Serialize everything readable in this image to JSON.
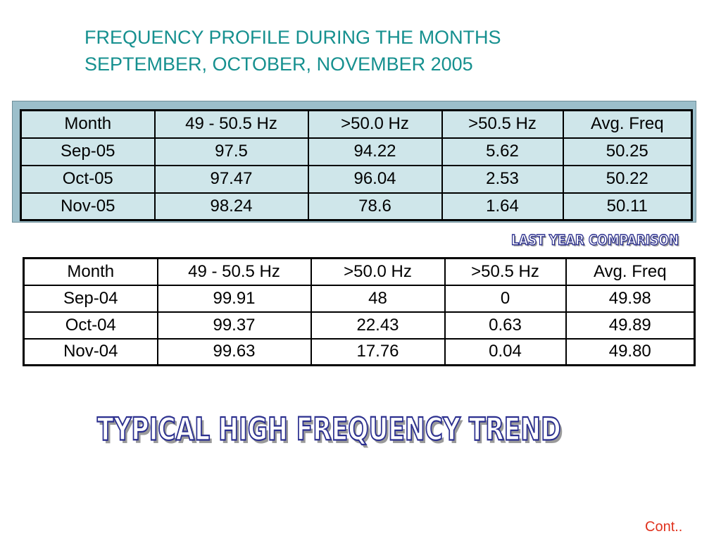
{
  "title": {
    "line1": "FREQUENCY PROFILE DURING THE MONTHS",
    "line2": "SEPTEMBER, OCTOBER, NOVEMBER 2005"
  },
  "table_2005": {
    "headers": [
      "Month",
      "49 - 50.5 Hz",
      ">50.0 Hz",
      ">50.5 Hz",
      "Avg. Freq"
    ],
    "rows": [
      [
        "Sep-05",
        "97.5",
        "94.22",
        "5.62",
        "50.25"
      ],
      [
        "Oct-05",
        "97.47",
        "96.04",
        "2.53",
        "50.22"
      ],
      [
        "Nov-05",
        "98.24",
        "78.6",
        "1.64",
        "50.11"
      ]
    ]
  },
  "comparison_label": "LAST YEAR COMPARISON",
  "table_2004": {
    "headers": [
      "Month",
      "49 - 50.5 Hz",
      ">50.0 Hz",
      ">50.5 Hz",
      "Avg. Freq"
    ],
    "rows": [
      [
        "Sep-04",
        "99.91",
        "48",
        "0",
        "49.98"
      ],
      [
        "Oct-04",
        "99.37",
        "22.43",
        "0.63",
        "49.89"
      ],
      [
        "Nov-04",
        "99.63",
        "17.76",
        "0.04",
        "49.80"
      ]
    ]
  },
  "banner_text": "TYPICAL HIGH FREQUENCY TREND",
  "footer": {
    "cont": "Cont.."
  },
  "colors": {
    "title": "#16908f",
    "frame": "#9cbfcb",
    "table_fill": "#cfe6ea",
    "banner_outline": "#2b2f8f",
    "cont": "#e0321e"
  }
}
